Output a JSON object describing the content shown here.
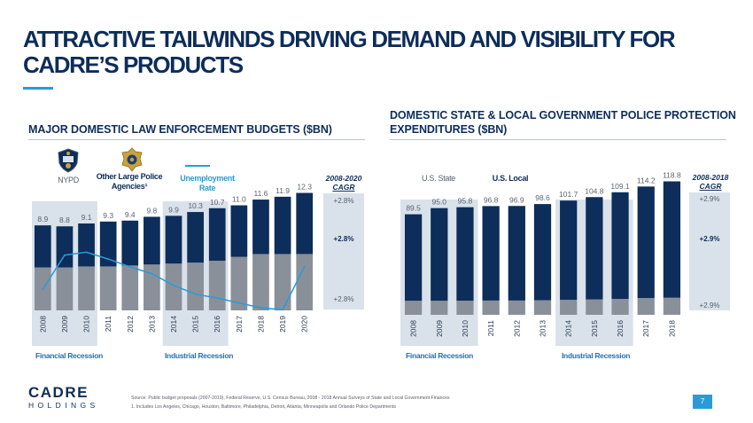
{
  "page": {
    "title": "ATTRACTIVE TAILWINDS DRIVING DEMAND AND VISIBILITY FOR CADRE’S PRODUCTS",
    "left_subtitle": "MAJOR DOMESTIC LAW ENFORCEMENT BUDGETS ($BN)",
    "right_subtitle": "DOMESTIC STATE & LOCAL GOVERNMENT POLICE PROTECTION EXPENDITURES ($BN)",
    "legend_nypd": "NYPD",
    "legend_other": "Other Large Police Agencies¹",
    "legend_unemployment": "Unemployment Rate",
    "legend_state": "U.S. State",
    "legend_local": "U.S. Local",
    "left_cagr_head": "2008-2020",
    "right_cagr_head": "2008-2018",
    "cagr_word": "CAGR",
    "left_cagr_values": [
      "+2.8%",
      "+2.8%",
      "+2.8%"
    ],
    "right_cagr_values": [
      "+2.9%",
      "+2.9%",
      "+2.9%"
    ],
    "financial_recession": "Financial Recession",
    "industrial_recession": "Industrial Recession",
    "logo_main": "CADRE",
    "logo_sub": "HOLDINGS",
    "source_note": "Source: Public budget proposals (2007-2019), Federal Reserve, U.S. Census Bureau, 2008 - 2018 Annual Surveys of State and Local Government Finances",
    "footnote_1": "1.     Includes Los Angeles, Chicago, Houston, Baltimore, Philadelphia, Detroit, Atlanta, Minneapolis and Orlando Police Departments",
    "page_number": "7",
    "colors": {
      "navy": "#0d2d5a",
      "gray": "#8a9099",
      "accent": "#2a9bd6",
      "shade": "#d9e1ea"
    }
  },
  "chart_data": [
    {
      "type": "bar",
      "title": "MAJOR DOMESTIC LAW ENFORCEMENT BUDGETS ($BN)",
      "categories": [
        "2008",
        "2009",
        "2010",
        "2011",
        "2012",
        "2013",
        "2014",
        "2015",
        "2016",
        "2017",
        "2018",
        "2019",
        "2020"
      ],
      "totals": [
        8.9,
        8.8,
        9.1,
        9.3,
        9.4,
        9.8,
        9.9,
        10.3,
        10.7,
        11.0,
        11.6,
        11.9,
        12.3
      ],
      "series": [
        {
          "name": "NYPD",
          "values": [
            4.5,
            4.5,
            4.6,
            4.6,
            4.7,
            4.8,
            4.9,
            5.0,
            5.2,
            5.6,
            5.9,
            5.9,
            5.9
          ]
        },
        {
          "name": "Other Large Police Agencies¹",
          "values": [
            4.4,
            4.3,
            4.5,
            4.7,
            4.7,
            5.0,
            5.0,
            5.3,
            5.5,
            5.4,
            5.7,
            6.0,
            6.4
          ]
        },
        {
          "name": "Unemployment Rate",
          "type": "line",
          "values": [
            5.8,
            9.3,
            9.6,
            8.9,
            8.1,
            7.4,
            6.2,
            5.3,
            4.9,
            4.4,
            3.9,
            3.7,
            8.1
          ]
        }
      ],
      "shaded_categories": [
        [
          "2008",
          "2010"
        ],
        [
          "2014",
          "2016"
        ]
      ],
      "ylim": [
        0,
        13
      ],
      "annotations": [
        "Financial Recession",
        "Industrial Recession"
      ]
    },
    {
      "type": "bar",
      "title": "DOMESTIC STATE & LOCAL GOVERNMENT POLICE PROTECTION EXPENDITURES ($BN)",
      "categories": [
        "2008",
        "2009",
        "2010",
        "2011",
        "2012",
        "2013",
        "2014",
        "2015",
        "2016",
        "2017",
        "2018"
      ],
      "totals": [
        89.5,
        95.0,
        95.8,
        96.8,
        96.9,
        98.6,
        101.7,
        104.8,
        109.1,
        114.2,
        118.8
      ],
      "series": [
        {
          "name": "U.S. State",
          "values": [
            12.5,
            12.5,
            12.6,
            12.7,
            12.7,
            13.0,
            13.3,
            13.7,
            14.2,
            14.9,
            15.2
          ]
        },
        {
          "name": "U.S. Local",
          "values": [
            77.0,
            82.5,
            83.2,
            84.1,
            84.2,
            85.6,
            88.4,
            91.1,
            94.9,
            99.3,
            103.6
          ]
        }
      ],
      "shaded_categories": [
        [
          "2008",
          "2010"
        ],
        [
          "2014",
          "2016"
        ]
      ],
      "ylim": [
        0,
        120
      ],
      "annotations": [
        "Financial Recession",
        "Industrial Recession"
      ]
    }
  ]
}
